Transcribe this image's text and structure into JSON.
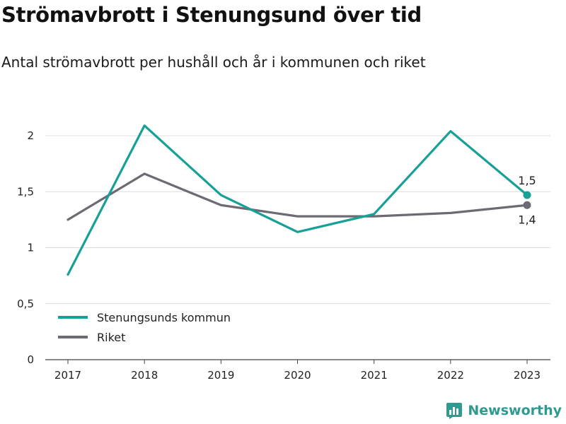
{
  "title": "Strömavbrott i Stenungsund över tid",
  "subtitle": "Antal strömavbrott per hushåll och år i kommunen och riket",
  "brand": "Newsworthy",
  "chart_data": {
    "type": "line",
    "title": "Strömavbrott i Stenungsund över tid",
    "subtitle": "Antal strömavbrott per hushåll och år i kommunen och riket",
    "xlabel": "",
    "ylabel": "",
    "x": [
      "2017",
      "2018",
      "2019",
      "2020",
      "2021",
      "2022",
      "2023"
    ],
    "ylim": [
      0,
      2.2
    ],
    "yticks": [
      0,
      0.5,
      1,
      1.5,
      2
    ],
    "ytick_labels": [
      "0",
      "0,5",
      "1",
      "1,5",
      "2"
    ],
    "grid": true,
    "legend_position": "bottom-left",
    "series": [
      {
        "name": "Stenungsunds kommun",
        "color": "#16a096",
        "values": [
          0.76,
          2.09,
          1.47,
          1.14,
          1.3,
          2.04,
          1.47
        ],
        "end_label": "1,5"
      },
      {
        "name": "Riket",
        "color": "#6d6a73",
        "values": [
          1.25,
          1.66,
          1.38,
          1.28,
          1.28,
          1.31,
          1.38
        ],
        "end_label": "1,4"
      }
    ]
  }
}
